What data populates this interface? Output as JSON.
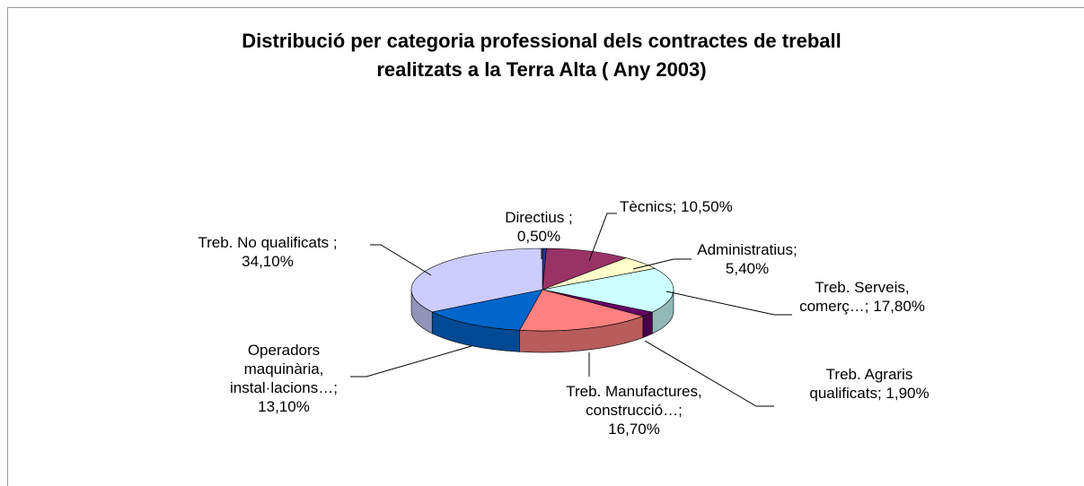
{
  "chart_data": {
    "type": "pie3d",
    "title": "Distribució per categoria professional dels contractes de treball realitzats a la Terra Alta ( Any 2003)",
    "categories": [
      "Directius ;",
      "Tècnics;",
      "Administratius;",
      "Treb. Serveis, comerç…;",
      "Treb. Agraris qualificats;",
      "Treb. Manufactures, construcció…;",
      "Operadors maquinària, instal·lacions…;",
      "Treb. No qualificats ;"
    ],
    "values": [
      0.5,
      10.5,
      5.4,
      17.8,
      1.9,
      16.7,
      13.1,
      34.1
    ],
    "value_labels": [
      "0,50%",
      "10,50%",
      "5,40%",
      "17,80%",
      "1,90%",
      "16,70%",
      "13,10%",
      "34,10%"
    ],
    "colors": [
      "#333399",
      "#993366",
      "#ffffcc",
      "#ccffff",
      "#660066",
      "#ff8080",
      "#0066cc",
      "#ccccff"
    ]
  }
}
